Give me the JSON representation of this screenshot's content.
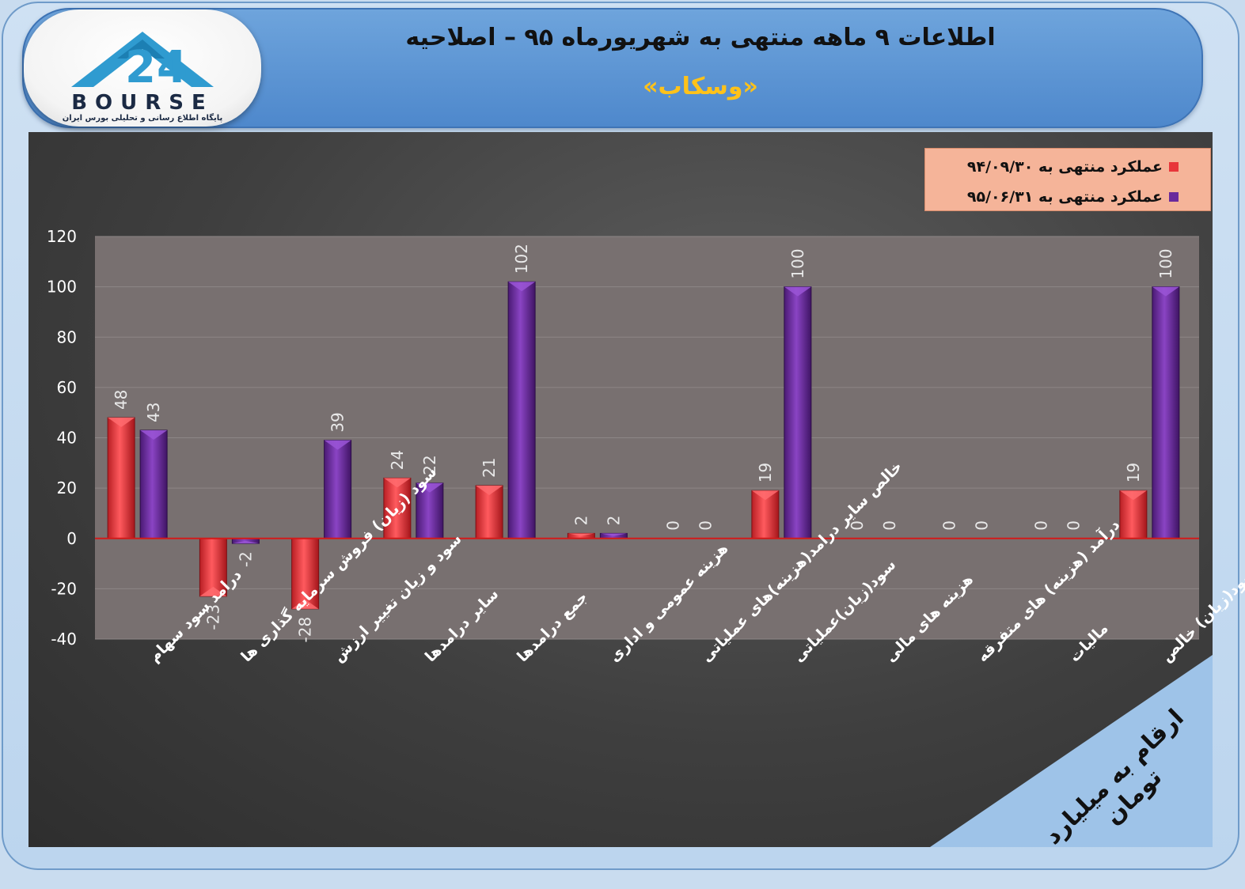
{
  "header": {
    "title": "اطلاعات ۹ ماهه منتهی به شهریورماه ۹۵ – اصلاحیه",
    "subtitle": "«وسکاب»"
  },
  "logo": {
    "word": "BOURSE",
    "subtitle": "پایگاه اطلاع رسانی و تحلیلی بورس ایران"
  },
  "unit_note": "ارقام به میلیارد تومان",
  "colors": {
    "series1": "#e8363a",
    "series2": "#6a2a9c",
    "zero_line": "#d21a1a",
    "plot_bg": "#787070",
    "header": "#5b95d6",
    "subtitle": "#ffc21a",
    "legend_bg": "#f5b499"
  },
  "chart_data": {
    "type": "bar",
    "ylim": [
      -40,
      120
    ],
    "yticks": [
      -40,
      -20,
      0,
      20,
      40,
      60,
      80,
      100,
      120
    ],
    "grid": true,
    "legend_position": "top-right",
    "categories": [
      "درامد سود سهام",
      "سود (زیان) فروش سرمایه گذاری ها",
      "سود و زیان تغییر ارزش",
      "سایر درامدها",
      "جمع درامدها",
      "هزینه عمومی و اداری",
      "خالص سایر درامد(هزینه)های عملیاتی",
      "سود(زیان)عملیاتی",
      "هزینه های مالی",
      "درآمد (هزینه) های متفرقه",
      "مالیات",
      "سود(زیان) خالص"
    ],
    "series": [
      {
        "name": "عملکرد منتهی به ۹۴/۰۹/۳۰",
        "values": [
          48,
          -23,
          -28,
          24,
          21,
          2,
          0,
          19,
          0,
          0,
          0,
          19
        ]
      },
      {
        "name": "عملکرد منتهی به ۹۵/۰۶/۳۱",
        "values": [
          43,
          -2,
          39,
          22,
          102,
          2,
          0,
          100,
          0,
          0,
          0,
          100
        ]
      }
    ]
  }
}
